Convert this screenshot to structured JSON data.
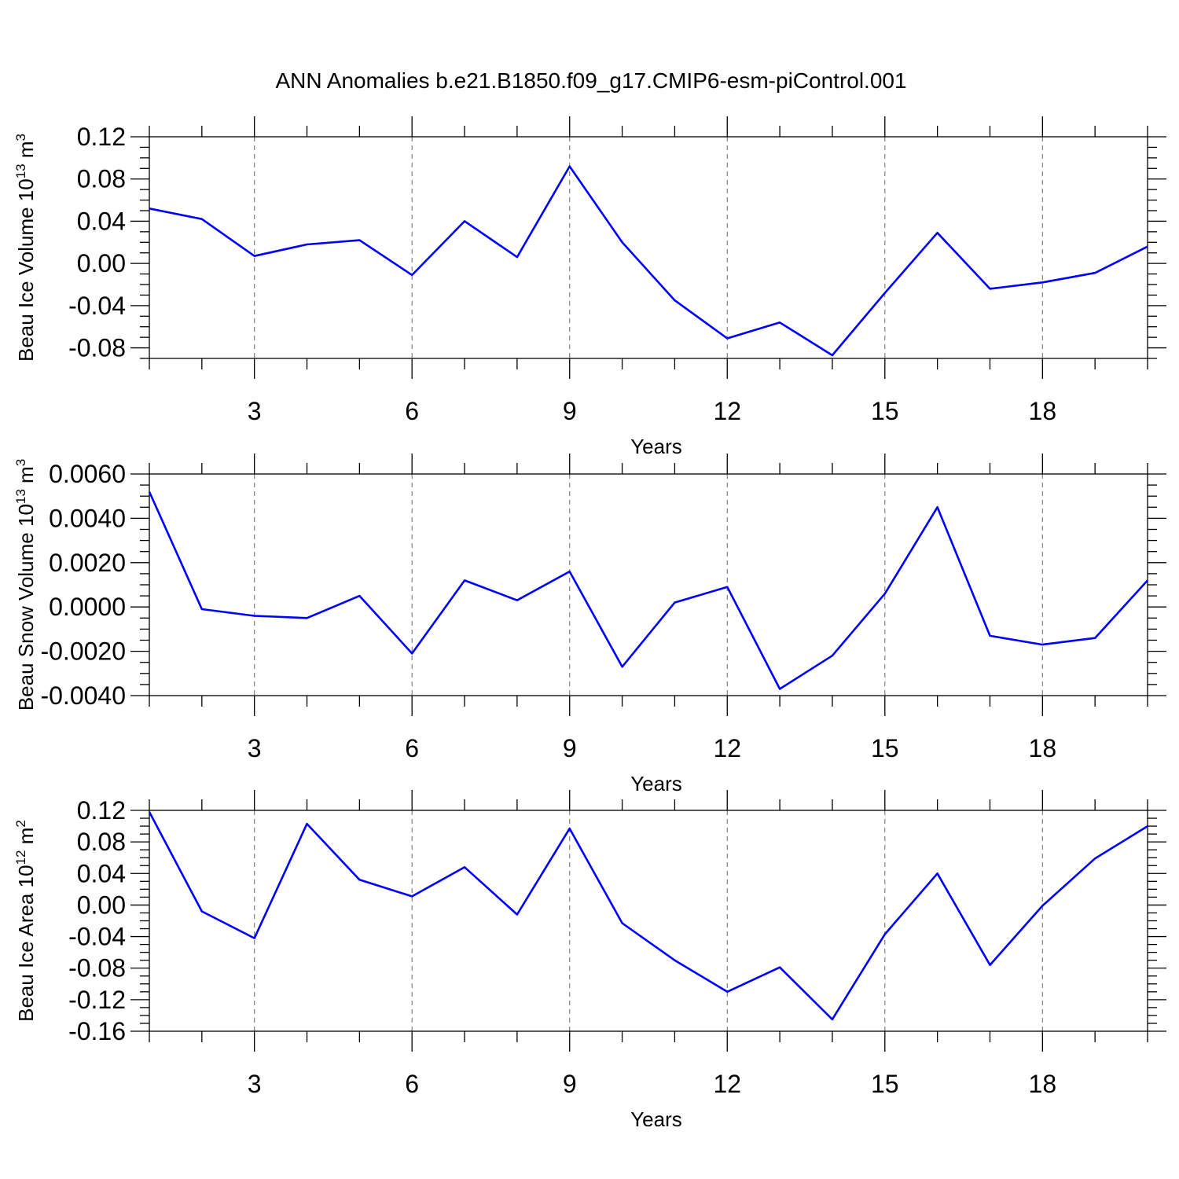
{
  "title": "ANN Anomalies b.e21.B1850.f09_g17.CMIP6-esm-piControl.001",
  "chart_data": [
    {
      "type": "line",
      "name": "ice-volume",
      "ylabel": "Beau Ice Volume 10",
      "ylabel_exp": "13",
      "ylabel_unit": " m",
      "ylabel_unit_exp": "3",
      "xlabel": "Years",
      "xlim": [
        1,
        20
      ],
      "ylim": [
        -0.09,
        0.12
      ],
      "xticks": [
        3,
        6,
        9,
        12,
        15,
        18
      ],
      "xtick_labels": [
        "3",
        "6",
        "9",
        "12",
        "15",
        "18"
      ],
      "yticks": [
        0.12,
        0.08,
        0.04,
        0.0,
        -0.04,
        -0.08
      ],
      "ytick_labels": [
        "0.12",
        "0.08",
        "0.04",
        "0.00",
        "-0.04",
        "-0.08"
      ],
      "yminor": 0.01,
      "x": [
        1,
        2,
        3,
        4,
        5,
        6,
        7,
        8,
        9,
        10,
        11,
        12,
        13,
        14,
        15,
        16,
        17,
        18,
        19,
        20
      ],
      "values": [
        0.052,
        0.042,
        0.007,
        0.018,
        0.022,
        -0.011,
        0.04,
        0.006,
        0.092,
        0.02,
        -0.035,
        -0.071,
        -0.056,
        -0.087,
        -0.028,
        0.029,
        -0.024,
        -0.018,
        -0.009,
        0.016
      ],
      "color": "#0000ff"
    },
    {
      "type": "line",
      "name": "snow-volume",
      "ylabel": "Beau Snow Volume 10",
      "ylabel_exp": "13",
      "ylabel_unit": " m",
      "ylabel_unit_exp": "3",
      "xlabel": "Years",
      "xlim": [
        1,
        20
      ],
      "ylim": [
        -0.004,
        0.006
      ],
      "xticks": [
        3,
        6,
        9,
        12,
        15,
        18
      ],
      "xtick_labels": [
        "3",
        "6",
        "9",
        "12",
        "15",
        "18"
      ],
      "yticks": [
        0.006,
        0.004,
        0.002,
        0.0,
        -0.002,
        -0.004
      ],
      "ytick_labels": [
        "0.0060",
        "0.0040",
        "0.0020",
        "0.0000",
        "-0.0020",
        "-0.0040"
      ],
      "yminor": 0.0005,
      "x": [
        1,
        2,
        3,
        4,
        5,
        6,
        7,
        8,
        9,
        10,
        11,
        12,
        13,
        14,
        15,
        16,
        17,
        18,
        19,
        20
      ],
      "values": [
        0.0052,
        -0.0001,
        -0.0004,
        -0.0005,
        0.0005,
        -0.0021,
        0.0012,
        0.0003,
        0.0016,
        -0.0027,
        0.0002,
        0.0009,
        -0.0037,
        -0.0022,
        0.0006,
        0.0045,
        -0.0013,
        -0.0017,
        -0.0014,
        0.0012
      ],
      "color": "#0000ff"
    },
    {
      "type": "line",
      "name": "ice-area",
      "ylabel": "Beau Ice Area 10",
      "ylabel_exp": "12",
      "ylabel_unit": " m",
      "ylabel_unit_exp": "2",
      "xlabel": "Years",
      "xlim": [
        1,
        20
      ],
      "ylim": [
        -0.16,
        0.12
      ],
      "xticks": [
        3,
        6,
        9,
        12,
        15,
        18
      ],
      "xtick_labels": [
        "3",
        "6",
        "9",
        "12",
        "15",
        "18"
      ],
      "yticks": [
        0.12,
        0.08,
        0.04,
        0.0,
        -0.04,
        -0.08,
        -0.12,
        -0.16
      ],
      "ytick_labels": [
        "0.12",
        "0.08",
        "0.04",
        "0.00",
        "-0.04",
        "-0.08",
        "-0.12",
        "-0.16"
      ],
      "yminor": 0.01,
      "x": [
        1,
        2,
        3,
        4,
        5,
        6,
        7,
        8,
        9,
        10,
        11,
        12,
        13,
        14,
        15,
        16,
        17,
        18,
        19,
        20
      ],
      "values": [
        0.118,
        -0.008,
        -0.042,
        0.103,
        0.032,
        0.011,
        0.048,
        -0.012,
        0.097,
        -0.023,
        -0.07,
        -0.11,
        -0.079,
        -0.145,
        -0.037,
        0.04,
        -0.076,
        -0.001,
        0.059,
        0.1
      ],
      "color": "#0000ff"
    }
  ]
}
